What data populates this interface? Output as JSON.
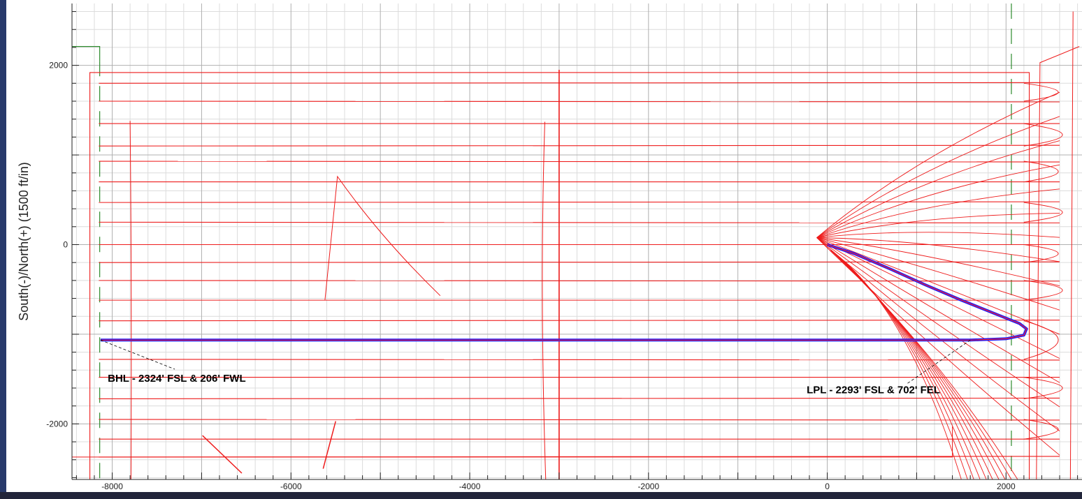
{
  "chart_data": {
    "type": "line",
    "title": "",
    "xlabel": "",
    "ylabel": "South(-)/North(+) (1500 ft/in)",
    "xlim": [
      -8450,
      2850
    ],
    "ylim": [
      -2620,
      2690
    ],
    "grid": true,
    "x_ticks": [
      -8000,
      -6000,
      -4000,
      -2000,
      0,
      2000
    ],
    "y_ticks": [
      2000,
      0,
      -2000
    ],
    "x_tick_labels": [
      "-8000",
      "-6000",
      "-4000",
      "-2000",
      "0",
      "2000"
    ],
    "y_tick_labels": [
      "2000",
      "0",
      "-2000"
    ],
    "colors": {
      "planned_well": "#1a1aff",
      "offset_wells": "#ee1c1c",
      "lease_lines": "#2e8b2e",
      "grid": "#c8c8c8"
    },
    "series": [
      {
        "type": "planned-wellbore",
        "x": [
          0,
          300,
          700,
          1100,
          1500,
          1900,
          2150,
          2230,
          2200,
          2000,
          1600,
          1000,
          0,
          -2000,
          -4000,
          -6000,
          -8000,
          -8130
        ],
        "y": [
          0,
          -100,
          -270,
          -450,
          -620,
          -780,
          -880,
          -940,
          -1010,
          -1050,
          -1065,
          -1065,
          -1065,
          -1065,
          -1065,
          -1065,
          -1065,
          -1065
        ]
      }
    ],
    "offset_wells": {
      "laterals_y": [
        1800,
        1600,
        1350,
        1100,
        930,
        700,
        470,
        250,
        0,
        -200,
        -400,
        -620,
        -850,
        -1280,
        -1480,
        -1720,
        -1950,
        -2170,
        -2370
      ],
      "laterals_x_start": -8150,
      "laterals_x_end": 2600
    },
    "annotations": [
      {
        "label": "BHL - 2324' FSL & 206' FWL",
        "x": -8130,
        "y": -1065
      },
      {
        "label": "LPL - 2293' FSL & 702' FEL",
        "x": 1600,
        "y": -1065
      }
    ]
  }
}
